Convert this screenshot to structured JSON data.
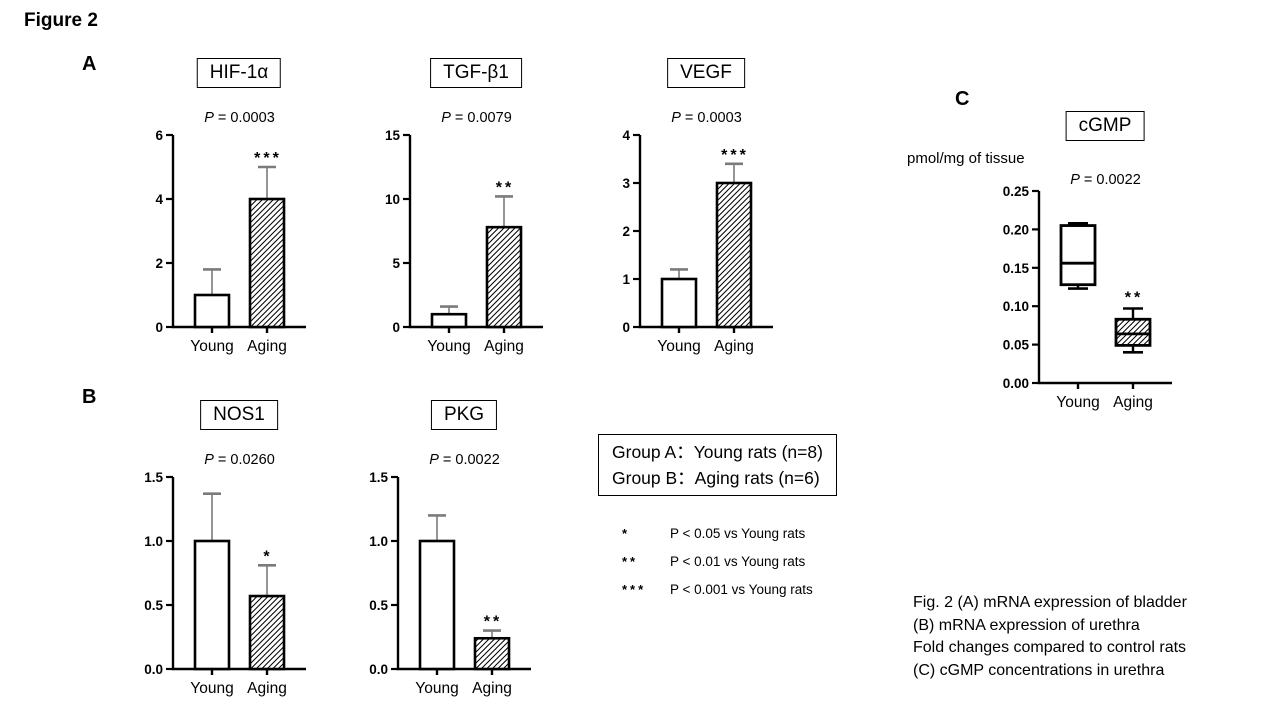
{
  "figure": {
    "title": "Figure 2",
    "panel_a_label": "A",
    "panel_b_label": "B",
    "panel_c_label": "C"
  },
  "colors": {
    "line": "#000000",
    "error_bar": "#7b7b7b",
    "background": "#ffffff"
  },
  "chart_data": [
    {
      "id": "hif1a",
      "panel": "A",
      "type": "bar",
      "title": "HIF-1α",
      "p_label": {
        "prefix": "P",
        "rest": "= 0.0003"
      },
      "categories": [
        "Young",
        "Aging"
      ],
      "values": [
        1.0,
        4.0
      ],
      "errors_up": [
        0.8,
        1.0
      ],
      "stars": [
        "",
        "***"
      ],
      "hatched": [
        false,
        true
      ],
      "ylim": [
        0,
        6
      ],
      "yticks": [
        0,
        2,
        4,
        6
      ],
      "ytick_labels": [
        "0",
        "2",
        "4",
        "6"
      ]
    },
    {
      "id": "tgfb1",
      "panel": "A",
      "type": "bar",
      "title": "TGF-β1",
      "p_label": {
        "prefix": "P",
        "rest": "= 0.0079"
      },
      "categories": [
        "Young",
        "Aging"
      ],
      "values": [
        1.0,
        7.8
      ],
      "errors_up": [
        0.6,
        2.4
      ],
      "stars": [
        "",
        "**"
      ],
      "hatched": [
        false,
        true
      ],
      "ylim": [
        0,
        15
      ],
      "yticks": [
        0,
        5,
        10,
        15
      ],
      "ytick_labels": [
        "0",
        "5",
        "10",
        "15"
      ]
    },
    {
      "id": "vegf",
      "panel": "A",
      "type": "bar",
      "title": "VEGF",
      "p_label": {
        "prefix": "P",
        "rest": "= 0.0003"
      },
      "categories": [
        "Young",
        "Aging"
      ],
      "values": [
        1.0,
        3.0
      ],
      "errors_up": [
        0.2,
        0.4
      ],
      "stars": [
        "",
        "***"
      ],
      "hatched": [
        false,
        true
      ],
      "ylim": [
        0,
        4
      ],
      "yticks": [
        0,
        1,
        2,
        3,
        4
      ],
      "ytick_labels": [
        "0",
        "1",
        "2",
        "3",
        "4"
      ]
    },
    {
      "id": "nos1",
      "panel": "B",
      "type": "bar",
      "title": "NOS1",
      "p_label": {
        "prefix": "P",
        "rest": "= 0.0260"
      },
      "categories": [
        "Young",
        "Aging"
      ],
      "values": [
        1.0,
        0.57
      ],
      "errors_up": [
        0.37,
        0.24
      ],
      "stars": [
        "",
        "*"
      ],
      "hatched": [
        false,
        true
      ],
      "ylim": [
        0,
        1.5
      ],
      "yticks": [
        0,
        0.5,
        1.0,
        1.5
      ],
      "ytick_labels": [
        "0.0",
        "0.5",
        "1.0",
        "1.5"
      ]
    },
    {
      "id": "pkg",
      "panel": "B",
      "type": "bar",
      "title": "PKG",
      "p_label": {
        "prefix": "P",
        "rest": "= 0.0022"
      },
      "categories": [
        "Young",
        "Aging"
      ],
      "values": [
        1.0,
        0.24
      ],
      "errors_up": [
        0.2,
        0.06
      ],
      "stars": [
        "",
        "**"
      ],
      "hatched": [
        false,
        true
      ],
      "ylim": [
        0,
        1.5
      ],
      "yticks": [
        0,
        0.5,
        1.0,
        1.5
      ],
      "ytick_labels": [
        "0.0",
        "0.5",
        "1.0",
        "1.5"
      ]
    },
    {
      "id": "cgmp",
      "panel": "C",
      "type": "box",
      "title": "cGMP",
      "unit_label": "pmol/mg of tissue",
      "p_label": {
        "prefix": "P",
        "rest": "= 0.0022"
      },
      "categories": [
        "Young",
        "Aging"
      ],
      "boxes": [
        {
          "whisker_low": 0.123,
          "q1": 0.128,
          "median": 0.156,
          "q3": 0.205,
          "whisker_high": 0.208,
          "hatched": false,
          "stars": ""
        },
        {
          "whisker_low": 0.04,
          "q1": 0.049,
          "median": 0.064,
          "q3": 0.083,
          "whisker_high": 0.097,
          "hatched": true,
          "stars": "**"
        }
      ],
      "ylim": [
        0,
        0.25
      ],
      "yticks": [
        0,
        0.05,
        0.1,
        0.15,
        0.2,
        0.25
      ],
      "ytick_labels": [
        "0.00",
        "0.05",
        "0.10",
        "0.15",
        "0.20",
        "0.25"
      ]
    }
  ],
  "group_box": {
    "line1": "Group A：Young rats (n=8)",
    "line2": "Group B：Aging rats (n=6)"
  },
  "significance_legend": [
    {
      "stars": "*",
      "text": "P < 0.05 vs Young rats"
    },
    {
      "stars": "**",
      "text": "P < 0.01 vs Young rats"
    },
    {
      "stars": "***",
      "text": "P < 0.001 vs Young rats"
    }
  ],
  "caption": {
    "lines": [
      "Fig. 2 (A) mRNA expression of bladder",
      "(B) mRNA expression of urethra",
      "Fold changes compared to control rats",
      "(C) cGMP concentrations in urethra"
    ]
  }
}
